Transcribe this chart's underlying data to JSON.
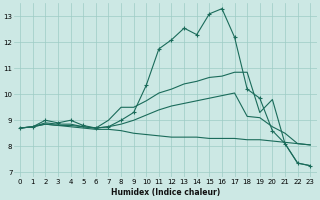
{
  "xlabel": "Humidex (Indice chaleur)",
  "xlim": [
    -0.5,
    23.5
  ],
  "ylim": [
    6.8,
    13.5
  ],
  "yticks": [
    7,
    8,
    9,
    10,
    11,
    12,
    13
  ],
  "xticks": [
    0,
    1,
    2,
    3,
    4,
    5,
    6,
    7,
    8,
    9,
    10,
    11,
    12,
    13,
    14,
    15,
    16,
    17,
    18,
    19,
    20,
    21,
    22,
    23
  ],
  "bg_color": "#cce8e4",
  "grid_color": "#9dccc5",
  "line_color": "#1a6b5a",
  "series1_x": [
    0,
    1,
    2,
    3,
    4,
    5,
    6,
    7,
    8,
    9,
    10,
    11,
    12,
    13,
    14,
    15,
    16,
    17,
    18,
    19,
    20,
    21,
    22,
    23
  ],
  "series1_y": [
    8.7,
    8.75,
    9.0,
    8.9,
    9.0,
    8.8,
    8.7,
    8.75,
    9.0,
    9.3,
    10.35,
    11.75,
    12.1,
    12.55,
    12.3,
    13.1,
    13.3,
    12.2,
    10.2,
    9.85,
    8.6,
    8.1,
    7.35,
    7.25
  ],
  "series2_x": [
    0,
    1,
    2,
    3,
    4,
    5,
    6,
    7,
    8,
    9,
    10,
    11,
    12,
    13,
    14,
    15,
    16,
    17,
    18,
    19,
    20,
    21,
    22,
    23
  ],
  "series2_y": [
    8.7,
    8.75,
    8.85,
    8.8,
    8.75,
    8.7,
    8.65,
    8.65,
    8.6,
    8.5,
    8.45,
    8.4,
    8.35,
    8.35,
    8.35,
    8.3,
    8.3,
    8.3,
    8.25,
    8.25,
    8.2,
    8.15,
    8.1,
    8.05
  ],
  "series3_x": [
    0,
    1,
    2,
    3,
    4,
    5,
    6,
    7,
    8,
    9,
    10,
    11,
    12,
    13,
    14,
    15,
    16,
    17,
    18,
    19,
    20,
    21,
    22,
    23
  ],
  "series3_y": [
    8.7,
    8.75,
    8.9,
    8.85,
    8.85,
    8.75,
    8.7,
    9.0,
    9.5,
    9.5,
    9.75,
    10.05,
    10.2,
    10.4,
    10.5,
    10.65,
    10.7,
    10.85,
    10.85,
    9.3,
    9.8,
    8.1,
    7.35,
    7.25
  ],
  "series4_x": [
    0,
    1,
    2,
    3,
    4,
    5,
    6,
    7,
    8,
    9,
    10,
    11,
    12,
    13,
    14,
    15,
    16,
    17,
    18,
    19,
    20,
    21,
    22,
    23
  ],
  "series4_y": [
    8.7,
    8.75,
    8.85,
    8.8,
    8.8,
    8.75,
    8.7,
    8.75,
    8.85,
    9.0,
    9.2,
    9.4,
    9.55,
    9.65,
    9.75,
    9.85,
    9.95,
    10.05,
    9.15,
    9.1,
    8.75,
    8.5,
    8.1,
    8.05
  ]
}
